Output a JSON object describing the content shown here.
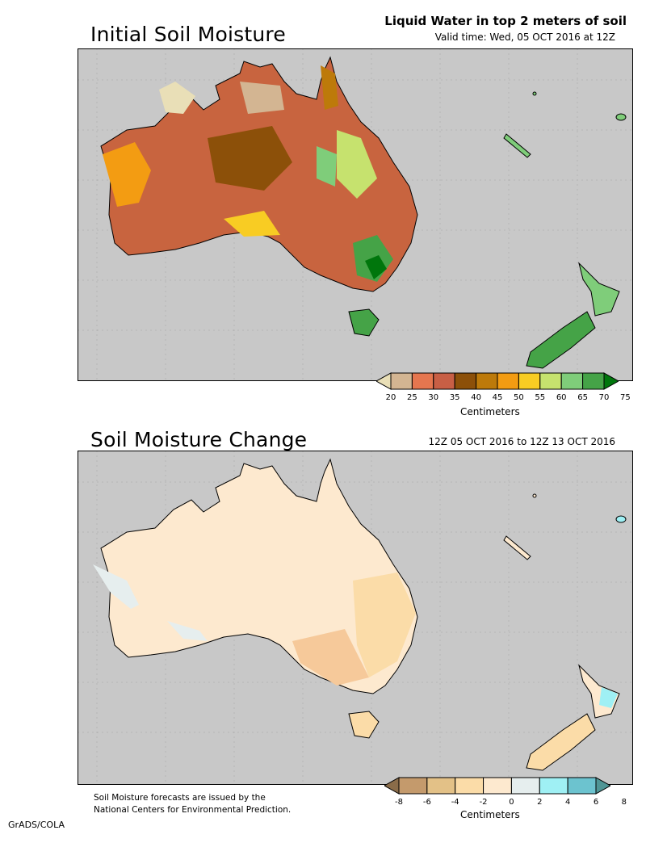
{
  "top_panel": {
    "title": "Initial Soil Moisture",
    "subtitle": "Liquid Water in top 2 meters of soil",
    "valid_time": "Valid time: Wed, 05 OCT 2016 at 12Z",
    "colorbar": {
      "labels": [
        "20",
        "25",
        "30",
        "35",
        "40",
        "45",
        "50",
        "55",
        "60",
        "65",
        "70",
        "75"
      ],
      "colors": [
        "#e9dfb7",
        "#d3b592",
        "#e5764f",
        "#c85f45",
        "#8c5009",
        "#bd7a0a",
        "#f39c12",
        "#f8cc23",
        "#c6e26e",
        "#7fcd7a",
        "#45a347",
        "#00760c"
      ],
      "unit": "Centimeters"
    }
  },
  "bottom_panel": {
    "title": "Soil Moisture Change",
    "period": "12Z 05 OCT 2016 to 12Z 13 OCT 2016",
    "colorbar": {
      "labels": [
        "-8",
        "-6",
        "-4",
        "-2",
        "0",
        "2",
        "4",
        "6",
        "8"
      ],
      "colors": [
        "#8a6c49",
        "#c49a6c",
        "#e3c187",
        "#fbdca8",
        "#fde9cf",
        "#e6eeee",
        "#9ff0f4",
        "#6cc3cf",
        "#4f9595"
      ],
      "unit": "Centimeters"
    }
  },
  "footnote": {
    "line1": "Soil Moisture forecasts are issued by the",
    "line2": "National Centers for Environmental Prediction."
  },
  "credit": "GrADS/COLA",
  "colors": {
    "ocean": "#c8c8c8",
    "grid_dot": "#9a9a9a"
  }
}
